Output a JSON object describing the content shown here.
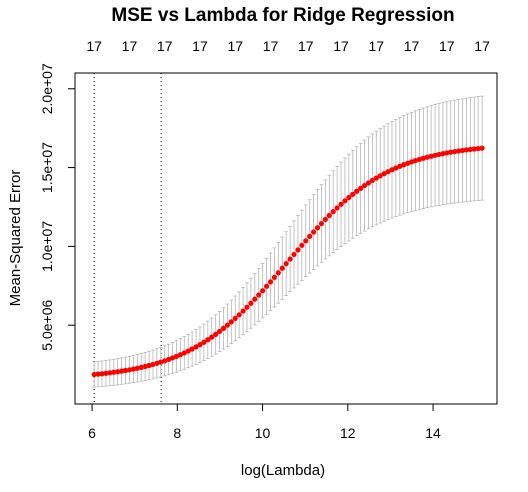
{
  "chart_data": {
    "type": "scatter",
    "title": "MSE vs Lambda for Ridge Regression",
    "xlabel": "log(Lambda)",
    "ylabel": "Mean-Squared Error",
    "xlim": [
      5.6,
      15.5
    ],
    "ylim": [
      0,
      21000000
    ],
    "x_ticks": [
      6,
      8,
      10,
      12,
      14
    ],
    "y_ticks": [
      5000000,
      10000000,
      15000000,
      20000000
    ],
    "y_tick_labels": [
      "5.0e+06",
      "1.0e+07",
      "1.5e+07",
      "2.0e+07"
    ],
    "top_axis_labels": [
      "17",
      "17",
      "17",
      "17",
      "17",
      "17",
      "17",
      "17",
      "17",
      "17",
      "17",
      "17"
    ],
    "vlines": [
      6.05,
      7.62
    ],
    "grid": false,
    "legend": "none",
    "curve": {
      "log_lambda_min": 6.05,
      "log_lambda_max": 15.15,
      "n_points": 100,
      "mse_min": 1870000,
      "mse_max": 16230000,
      "midpoint_log_lambda": 10.6,
      "steepness": 0.85,
      "error_bar_halfwidth_min": 800000,
      "error_bar_halfwidth_max": 3300000
    },
    "colors": {
      "points": "#ff0000",
      "error_bars": "#b5b5b5",
      "axes": "#000000",
      "vlines": "#000000"
    }
  }
}
